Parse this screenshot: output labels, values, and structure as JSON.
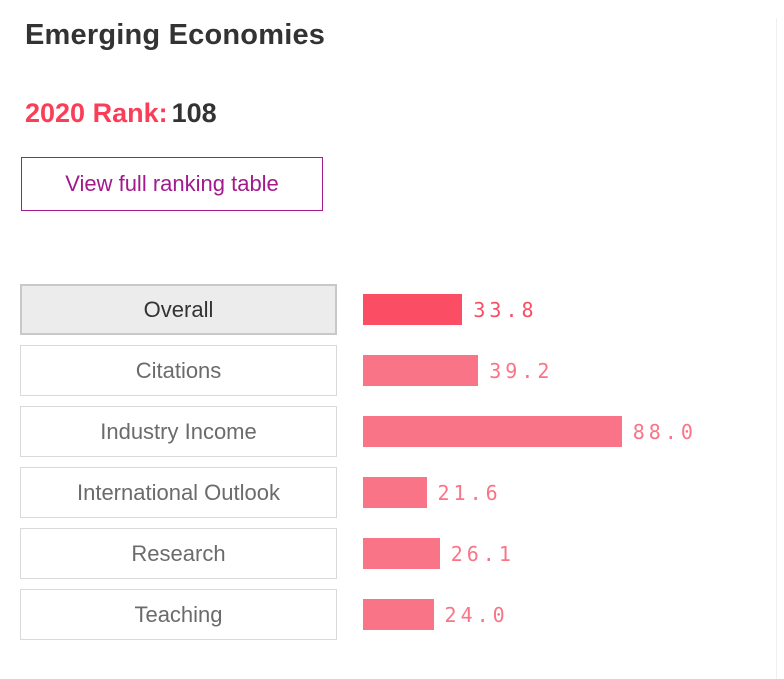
{
  "header": {
    "title": "Emerging Economies",
    "rank_label": "2020 Rank:",
    "rank_value": "108"
  },
  "actions": {
    "view_table_label": "View full ranking table"
  },
  "colors": {
    "rank_accent": "#fa3e58",
    "button_purple": "#a21a8e",
    "dark_text": "#333333",
    "gray_text": "#6b6b6b",
    "selected_button_bg": "#ececec"
  },
  "chart_data": {
    "type": "bar",
    "orientation": "horizontal",
    "title": "",
    "xlabel": "",
    "ylabel": "",
    "xlim": [
      0,
      100
    ],
    "grid": false,
    "legend": false,
    "categories": [
      "Overall",
      "Citations",
      "Industry Income",
      "International Outlook",
      "Research",
      "Teaching"
    ],
    "values": [
      33.8,
      39.2,
      88.0,
      21.6,
      26.1,
      24.0
    ],
    "value_labels": [
      "33.8",
      "39.2",
      "88.0",
      "21.6",
      "26.1",
      "24.0"
    ],
    "selected_category": "Overall",
    "bar_color_selected": "#fb4d63",
    "bar_color": "#fa7487"
  }
}
